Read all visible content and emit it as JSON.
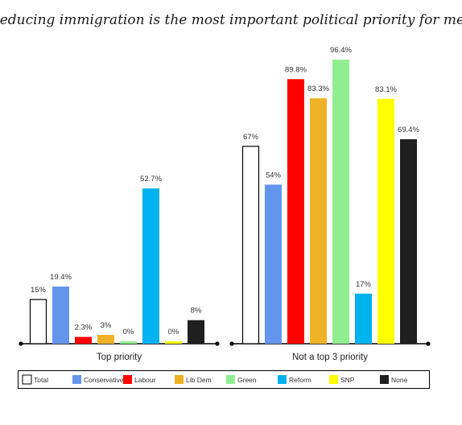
{
  "chart_data": {
    "type": "bar",
    "title": "“Reducing immigration is the most important political priority for me”",
    "categories": [
      "Top priority",
      "Not a top 3 priority"
    ],
    "ylim": [
      0,
      100
    ],
    "grid": false,
    "legend_position": "bottom",
    "series": [
      {
        "name": "Total",
        "color": "#ffffff",
        "stroke": "#000000",
        "values": [
          15,
          67
        ],
        "labels": [
          "15%",
          "67%"
        ]
      },
      {
        "name": "Conservative",
        "color": "#6495ed",
        "stroke": "#6495ed",
        "values": [
          19.4,
          54
        ],
        "labels": [
          "19.4%",
          "54%"
        ]
      },
      {
        "name": "Labour",
        "color": "#ff0000",
        "stroke": "#ff0000",
        "values": [
          2.3,
          89.8
        ],
        "labels": [
          "2.3%",
          "89.8%"
        ]
      },
      {
        "name": "Lib Dem",
        "color": "#efb126",
        "stroke": "#efb126",
        "values": [
          3,
          83.3
        ],
        "labels": [
          "3%",
          "83.3%"
        ]
      },
      {
        "name": "Green",
        "color": "#90ee90",
        "stroke": "#90ee90",
        "values": [
          0,
          96.4
        ],
        "labels": [
          "0%",
          "96.4%"
        ]
      },
      {
        "name": "Reform",
        "color": "#00b2ee",
        "stroke": "#00b2ee",
        "values": [
          52.7,
          17
        ],
        "labels": [
          "52.7%",
          "17%"
        ]
      },
      {
        "name": "SNP",
        "color": "#ffff00",
        "stroke": "#ffff00",
        "values": [
          0,
          83.1
        ],
        "labels": [
          "0%",
          "83.1%"
        ]
      },
      {
        "name": "None",
        "color": "#1f1f1f",
        "stroke": "#1f1f1f",
        "values": [
          8,
          69.4
        ],
        "labels": [
          "8%",
          "69.4%"
        ]
      }
    ]
  }
}
